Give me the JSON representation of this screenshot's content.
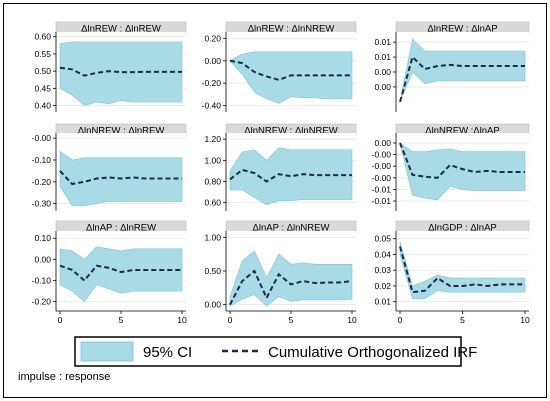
{
  "chart_data": [
    {
      "type": "line",
      "title": "ΔlnREW : ΔlnREW",
      "x": [
        0,
        1,
        2,
        3,
        4,
        5,
        6,
        7,
        8,
        9,
        10
      ],
      "ylim": [
        0.39,
        0.605
      ],
      "yticks": [
        "0.60",
        "0.55",
        "0.50",
        "0.45",
        "0.40"
      ],
      "ytick_values": [
        0.6,
        0.55,
        0.5,
        0.45,
        0.4
      ],
      "xticks": [],
      "series": [
        {
          "name": "Cumulative Orthogonalized IRF",
          "values": [
            0.51,
            0.505,
            0.487,
            0.495,
            0.5,
            0.497,
            0.497,
            0.498,
            0.498,
            0.498,
            0.498
          ]
        }
      ],
      "ci_upper": [
        0.58,
        0.585,
        0.585,
        0.585,
        0.585,
        0.585,
        0.585,
        0.585,
        0.585,
        0.585,
        0.585
      ],
      "ci_lower": [
        0.45,
        0.43,
        0.4,
        0.41,
        0.405,
        0.415,
        0.41,
        0.41,
        0.41,
        0.41,
        0.41
      ]
    },
    {
      "type": "line",
      "title": "ΔlnREW : ΔlnNREW",
      "x": [
        0,
        1,
        2,
        3,
        4,
        5,
        6,
        7,
        8,
        9,
        10
      ],
      "ylim": [
        -0.43,
        0.23
      ],
      "yticks": [
        "0.20",
        "0.00",
        "-0.20",
        "-0.40"
      ],
      "ytick_values": [
        0.2,
        0.0,
        -0.2,
        -0.4
      ],
      "xticks": [],
      "series": [
        {
          "name": "Cumulative Orthogonalized IRF",
          "values": [
            0.0,
            -0.02,
            -0.1,
            -0.14,
            -0.17,
            -0.13,
            -0.13,
            -0.13,
            -0.13,
            -0.13,
            -0.13
          ]
        }
      ],
      "ci_upper": [
        0.0,
        0.06,
        0.08,
        0.08,
        0.08,
        0.08,
        0.08,
        0.08,
        0.08,
        0.08,
        0.08
      ],
      "ci_lower": [
        0.0,
        -0.12,
        -0.28,
        -0.34,
        -0.38,
        -0.32,
        -0.33,
        -0.33,
        -0.34,
        -0.34,
        -0.34
      ]
    },
    {
      "type": "line",
      "title": "ΔlnREW : ΔlnAP",
      "x": [
        0,
        1,
        2,
        3,
        4,
        5,
        6,
        7,
        8,
        9,
        10
      ],
      "ylim": [
        -0.0012,
        0.0112
      ],
      "yticks": [
        "0.01",
        "0.01",
        "0.00",
        "0.00"
      ],
      "ytick_values": [
        0.01,
        0.0075,
        0.005,
        0.0025
      ],
      "xticks": [],
      "series": [
        {
          "name": "Cumulative Orthogonalized IRF",
          "values": [
            0.0,
            0.0075,
            0.0055,
            0.006,
            0.0062,
            0.006,
            0.006,
            0.006,
            0.006,
            0.006,
            0.006
          ]
        }
      ],
      "ci_upper": [
        0.0,
        0.0105,
        0.0085,
        0.0085,
        0.0085,
        0.0085,
        0.0085,
        0.0085,
        0.0085,
        0.0085,
        0.0085
      ],
      "ci_lower": [
        0.0,
        0.005,
        0.003,
        0.0035,
        0.0035,
        0.0035,
        0.0035,
        0.0035,
        0.0035,
        0.0035,
        0.0035
      ]
    },
    {
      "type": "line",
      "title": "ΔlnNREW : ΔlnREW",
      "x": [
        0,
        1,
        2,
        3,
        4,
        5,
        6,
        7,
        8,
        9,
        10
      ],
      "ylim": [
        -0.32,
        0.01
      ],
      "yticks": [
        "-0.00",
        "-0.10",
        "-0.20",
        "-0.30"
      ],
      "ytick_values": [
        0.0,
        -0.1,
        -0.2,
        -0.3
      ],
      "xticks": [],
      "series": [
        {
          "name": "Cumulative Orthogonalized IRF",
          "values": [
            -0.15,
            -0.21,
            -0.2,
            -0.185,
            -0.18,
            -0.185,
            -0.18,
            -0.185,
            -0.185,
            -0.185,
            -0.185
          ]
        }
      ],
      "ci_upper": [
        -0.06,
        -0.1,
        -0.09,
        -0.09,
        -0.09,
        -0.09,
        -0.09,
        -0.09,
        -0.09,
        -0.09,
        -0.09
      ],
      "ci_lower": [
        -0.22,
        -0.31,
        -0.31,
        -0.3,
        -0.29,
        -0.29,
        -0.29,
        -0.29,
        -0.29,
        -0.29,
        -0.29
      ]
    },
    {
      "type": "line",
      "title": "ΔlnNREW : ΔlnNREW",
      "x": [
        0,
        1,
        2,
        3,
        4,
        5,
        6,
        7,
        8,
        9,
        10
      ],
      "ylim": [
        0.55,
        1.23
      ],
      "yticks": [
        "1.20",
        "1.00",
        "0.80",
        "0.60"
      ],
      "ytick_values": [
        1.2,
        1.0,
        0.8,
        0.6
      ],
      "xticks": [],
      "series": [
        {
          "name": "Cumulative Orthogonalized IRF",
          "values": [
            0.82,
            0.91,
            0.88,
            0.8,
            0.87,
            0.85,
            0.87,
            0.86,
            0.86,
            0.86,
            0.86
          ]
        }
      ],
      "ci_upper": [
        0.9,
        1.08,
        1.1,
        1.0,
        1.12,
        1.1,
        1.1,
        1.1,
        1.1,
        1.1,
        1.1
      ],
      "ci_lower": [
        0.72,
        0.72,
        0.65,
        0.58,
        0.62,
        0.62,
        0.63,
        0.63,
        0.63,
        0.63,
        0.63
      ]
    },
    {
      "type": "line",
      "title": "ΔlnNREW :ΔlnAP",
      "x": [
        0,
        1,
        2,
        3,
        4,
        5,
        6,
        7,
        8,
        9,
        10
      ],
      "ylim": [
        -0.0112,
        0.0012
      ],
      "yticks": [
        "0.00",
        "-0.00",
        "-0.00",
        "-0.00",
        "-0.01",
        "-0.01"
      ],
      "ytick_values": [
        0.0,
        -0.002,
        -0.004,
        -0.006,
        -0.008,
        -0.01
      ],
      "xticks": [],
      "series": [
        {
          "name": "Cumulative Orthogonalized IRF",
          "values": [
            0.0,
            -0.0055,
            -0.0058,
            -0.006,
            -0.0038,
            -0.0045,
            -0.005,
            -0.0048,
            -0.005,
            -0.005,
            -0.005
          ]
        }
      ],
      "ci_upper": [
        0.0,
        -0.0015,
        -0.0015,
        -0.0012,
        -0.001,
        -0.0015,
        -0.0015,
        -0.0015,
        -0.0015,
        -0.0015,
        -0.0015
      ],
      "ci_lower": [
        0.0,
        -0.009,
        -0.0095,
        -0.0098,
        -0.0075,
        -0.008,
        -0.0082,
        -0.0082,
        -0.0082,
        -0.0082,
        -0.0082
      ]
    },
    {
      "type": "line",
      "title": "ΔlnAP : ΔlnREW",
      "x": [
        0,
        1,
        2,
        3,
        4,
        5,
        6,
        7,
        8,
        9,
        10
      ],
      "ylim": [
        -0.23,
        0.12
      ],
      "yticks": [
        "0.10",
        "0.00",
        "-0.10",
        "-0.20"
      ],
      "ytick_values": [
        0.1,
        0.0,
        -0.1,
        -0.2
      ],
      "xticks": [
        "0",
        "5",
        "10"
      ],
      "xtick_values": [
        0,
        5,
        10
      ],
      "series": [
        {
          "name": "Cumulative Orthogonalized IRF",
          "values": [
            -0.03,
            -0.05,
            -0.1,
            -0.03,
            -0.04,
            -0.06,
            -0.05,
            -0.05,
            -0.05,
            -0.05,
            -0.05
          ]
        }
      ],
      "ci_upper": [
        0.05,
        0.04,
        0.0,
        0.06,
        0.05,
        0.04,
        0.05,
        0.05,
        0.05,
        0.05,
        0.05
      ],
      "ci_lower": [
        -0.12,
        -0.15,
        -0.2,
        -0.12,
        -0.14,
        -0.16,
        -0.15,
        -0.15,
        -0.15,
        -0.15,
        -0.15
      ]
    },
    {
      "type": "line",
      "title": "ΔlnAP : ΔlnNREW",
      "x": [
        0,
        1,
        2,
        3,
        4,
        5,
        6,
        7,
        8,
        9,
        10
      ],
      "ylim": [
        -0.05,
        1.05
      ],
      "yticks": [
        "1.00",
        "0.50",
        "0.00"
      ],
      "ytick_values": [
        1.0,
        0.5,
        0.0
      ],
      "xticks": [
        "0",
        "5",
        "10"
      ],
      "xtick_values": [
        0,
        5,
        10
      ],
      "series": [
        {
          "name": "Cumulative Orthogonalized IRF",
          "values": [
            0.0,
            0.35,
            0.5,
            0.1,
            0.45,
            0.3,
            0.35,
            0.32,
            0.33,
            0.33,
            0.35
          ]
        }
      ],
      "ci_upper": [
        0.12,
        0.65,
        0.8,
        0.4,
        0.75,
        0.6,
        0.62,
        0.6,
        0.6,
        0.6,
        0.6
      ],
      "ci_lower": [
        -0.02,
        0.08,
        0.15,
        -0.02,
        0.12,
        0.05,
        0.07,
        0.07,
        0.07,
        0.07,
        0.08
      ]
    },
    {
      "type": "line",
      "title": "ΔlnGDP : ΔlnAP",
      "x": [
        0,
        1,
        2,
        3,
        4,
        5,
        6,
        7,
        8,
        9,
        10
      ],
      "ylim": [
        0.006,
        0.053
      ],
      "yticks": [
        "0.05",
        "0.04",
        "0.03",
        "0.02",
        "0.01"
      ],
      "ytick_values": [
        0.05,
        0.04,
        0.03,
        0.02,
        0.01
      ],
      "xticks": [
        "0",
        "5",
        "10"
      ],
      "xtick_values": [
        0,
        5,
        10
      ],
      "series": [
        {
          "name": "Cumulative Orthogonalized IRF",
          "values": [
            0.045,
            0.016,
            0.017,
            0.025,
            0.02,
            0.02,
            0.021,
            0.02,
            0.021,
            0.021,
            0.021
          ]
        }
      ],
      "ci_upper": [
        0.048,
        0.02,
        0.023,
        0.027,
        0.025,
        0.025,
        0.025,
        0.025,
        0.025,
        0.025,
        0.025
      ],
      "ci_lower": [
        0.04,
        0.012,
        0.012,
        0.017,
        0.016,
        0.016,
        0.016,
        0.016,
        0.016,
        0.016,
        0.016
      ]
    }
  ],
  "legend": {
    "ci_label": "95% CI",
    "irf_label": "Cumulative Orthogonalized IRF"
  },
  "note": "impulse : response",
  "colors": {
    "ci_fill": "#a8dbe6",
    "ci_stroke": "#7cc4d4",
    "line": "#1a2a4a",
    "header_bg": "#d9d9d9"
  }
}
